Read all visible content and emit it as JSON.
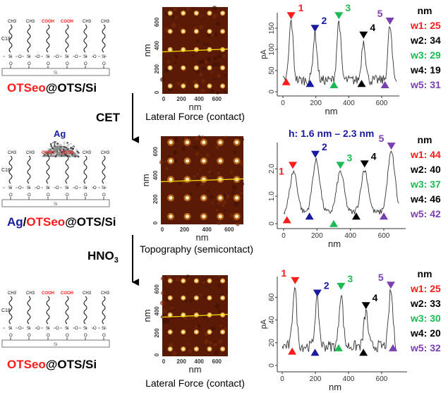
{
  "colors": {
    "red": "#ff1a1a",
    "blue": "#1a1aa0",
    "green": "#1db954",
    "black": "#000000",
    "purple": "#7a3fb0",
    "afm_bg": "#5a1a05",
    "scan_line": "#ffe400"
  },
  "stages": [
    {
      "label_parts": [
        {
          "text": "OTSeo",
          "color": "#ff1a1a"
        },
        {
          "text": "@OTS/Si",
          "color": "#000000"
        }
      ],
      "has_ag": false
    },
    {
      "label_parts": [
        {
          "text": "Ag",
          "color": "#1a1aa0"
        },
        {
          "text": "/",
          "color": "#000000"
        },
        {
          "text": "OTSeo",
          "color": "#ff1a1a"
        },
        {
          "text": "@OTS/Si",
          "color": "#000000"
        }
      ],
      "has_ag": true,
      "ag_label": "Ag"
    },
    {
      "label_parts": [
        {
          "text": "OTSeo",
          "color": "#ff1a1a"
        },
        {
          "text": "@OTS/Si",
          "color": "#000000"
        }
      ],
      "has_ag": false
    }
  ],
  "molecule": {
    "chain_heads": [
      "CH3",
      "CH3",
      "COOH",
      "COOH",
      "CH3",
      "CH3"
    ],
    "chain_label": "C18",
    "backbone_atom": "Si",
    "bridge_atom": "O",
    "substrate": "Si"
  },
  "steps": [
    {
      "label": "CET"
    },
    {
      "label": "HNO",
      "subscript": "3"
    }
  ],
  "afm_images": [
    {
      "caption": "Lateral Force (contact)",
      "xlabel": "nm",
      "ylabel": "nm",
      "ticks": [
        "0",
        "200",
        "400",
        "600"
      ]
    },
    {
      "caption": "Topography  (semicontact)",
      "xlabel": "nm",
      "ylabel": "nm",
      "ticks": [
        "0",
        "200",
        "400",
        "600"
      ]
    },
    {
      "caption": "Lateral Force (contact)",
      "xlabel": "nm",
      "ylabel": "nm",
      "ticks": [
        "0",
        "200",
        "400",
        "600"
      ]
    }
  ],
  "chart_data": [
    {
      "type": "line",
      "xlabel": "nm",
      "ylabel": "pA",
      "xlim": [
        0,
        700
      ],
      "ylim": [
        0,
        170
      ],
      "xticks": [
        0,
        200,
        400,
        600
      ],
      "yticks": [
        0,
        50,
        100,
        150
      ],
      "peaks": [
        [
          50,
          168
        ],
        [
          195,
          138
        ],
        [
          340,
          168
        ],
        [
          490,
          122
        ],
        [
          650,
          155
        ]
      ],
      "baseline": 27,
      "markers": [
        {
          "label": "1",
          "color": "#ff1a1a",
          "top": [
            50,
            178
          ],
          "bottom": [
            20,
            22
          ]
        },
        {
          "label": "2",
          "color": "#1a1aa0",
          "top": [
            195,
            148
          ],
          "bottom": [
            165,
            18
          ]
        },
        {
          "label": "3",
          "color": "#1db954",
          "top": [
            340,
            178
          ],
          "bottom": [
            310,
            15
          ]
        },
        {
          "label": "4",
          "color": "#000000",
          "top": [
            490,
            132
          ],
          "bottom": [
            478,
            18
          ]
        },
        {
          "label": "5",
          "color": "#7a3fb0",
          "top": [
            650,
            165
          ],
          "bottom": [
            620,
            15
          ]
        }
      ],
      "header": "",
      "width_unit": "nm",
      "widths": [
        {
          "label": "w1: 25",
          "color": "#ff1a1a"
        },
        {
          "label": "w2: 34",
          "color": "#000000"
        },
        {
          "label": "w3: 29",
          "color": "#1db954"
        },
        {
          "label": "w4: 19",
          "color": "#000000"
        },
        {
          "label": "w5: 31",
          "color": "#7a3fb0"
        }
      ]
    },
    {
      "type": "line",
      "xlabel": "nm",
      "ylabel": "",
      "xlim": [
        0,
        700
      ],
      "ylim": [
        0,
        2.7
      ],
      "xticks": [
        0,
        200,
        400,
        600
      ],
      "yticks": [
        0,
        1.0,
        2.0
      ],
      "ytick_labels": [
        "0",
        "1.0",
        "2.0"
      ],
      "peaks": [
        [
          60,
          1.9
        ],
        [
          195,
          2.3
        ],
        [
          340,
          1.9
        ],
        [
          485,
          1.95
        ],
        [
          645,
          2.6
        ]
      ],
      "baseline": 0.4,
      "markers": [
        {
          "label": "1",
          "color": "#ff1a1a",
          "top": [
            55,
            2.1
          ],
          "bottom": [
            20,
            0.12
          ]
        },
        {
          "label": "2",
          "color": "#1a1aa0",
          "top": [
            190,
            2.5
          ],
          "bottom": [
            155,
            0.25
          ]
        },
        {
          "label": "3",
          "color": "#1db954",
          "top": [
            340,
            2.1
          ],
          "bottom": [
            300,
            -0.02
          ]
        },
        {
          "label": "4",
          "color": "#000000",
          "top": [
            485,
            2.15
          ],
          "bottom": [
            435,
            0.25
          ]
        },
        {
          "label": "5",
          "color": "#7a3fb0",
          "top": [
            645,
            2.8
          ],
          "bottom": [
            600,
            0.25
          ]
        }
      ],
      "header": "h: 1.6 nm – 2.3 nm",
      "width_unit": "nm",
      "widths": [
        {
          "label": "w1: 44",
          "color": "#ff1a1a"
        },
        {
          "label": "w2: 40",
          "color": "#000000"
        },
        {
          "label": "w3: 37",
          "color": "#1db954"
        },
        {
          "label": "w4: 46",
          "color": "#000000"
        },
        {
          "label": "w5: 42",
          "color": "#7a3fb0"
        }
      ]
    },
    {
      "type": "line",
      "xlabel": "nm",
      "ylabel": "pA",
      "xlim": [
        0,
        700
      ],
      "ylim": [
        0,
        72
      ],
      "xticks": [
        0,
        200,
        400,
        600
      ],
      "yticks": [
        0,
        20,
        40,
        60
      ],
      "peaks": [
        [
          75,
          70
        ],
        [
          210,
          58
        ],
        [
          355,
          64
        ],
        [
          505,
          47
        ],
        [
          655,
          66
        ]
      ],
      "baseline": 17,
      "markers": [
        {
          "label": "1",
          "color": "#ff1a1a",
          "top": [
            78,
            74
          ],
          "bottom": [
            60,
            12
          ]
        },
        {
          "label": "2",
          "color": "#1a1aa0",
          "top": [
            212,
            63
          ],
          "bottom": [
            198,
            11
          ]
        },
        {
          "label": "3",
          "color": "#1db954",
          "top": [
            355,
            69
          ],
          "bottom": [
            340,
            15
          ]
        },
        {
          "label": "4",
          "color": "#000000",
          "top": [
            505,
            52
          ],
          "bottom": [
            490,
            11
          ]
        },
        {
          "label": "5",
          "color": "#7a3fb0",
          "top": [
            655,
            70
          ],
          "bottom": [
            668,
            15
          ]
        }
      ],
      "header": "",
      "width_unit": "nm",
      "widths": [
        {
          "label": "w1: 25",
          "color": "#ff1a1a"
        },
        {
          "label": "w2: 33",
          "color": "#000000"
        },
        {
          "label": "w3: 30",
          "color": "#1db954"
        },
        {
          "label": "w4: 20",
          "color": "#000000"
        },
        {
          "label": "w5: 32",
          "color": "#7a3fb0"
        }
      ]
    }
  ]
}
